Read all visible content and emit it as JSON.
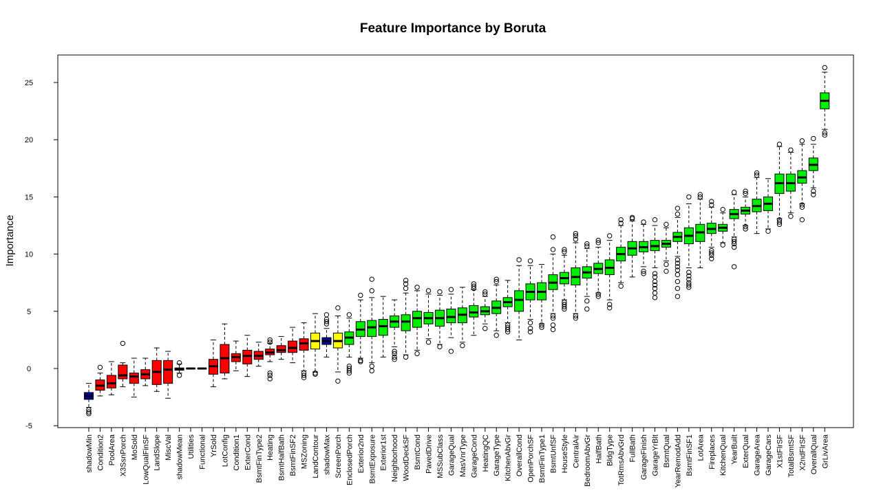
{
  "chart_data": {
    "type": "box",
    "title": "Feature Importance by Boruta",
    "ylabel": "Importance",
    "xlabel": "",
    "ylim": [
      -5.3,
      27.3
    ],
    "yticks": [
      -5,
      0,
      5,
      10,
      15,
      20,
      25
    ],
    "colors": {
      "rejected": "#ff0000",
      "tentative": "#ffff00",
      "confirmed": "#00ee00",
      "shadow": "#0000aa"
    },
    "grid": false,
    "legend": "none",
    "boxes": [
      {
        "name": "shadowMin",
        "status": "shadow",
        "min": -3.4,
        "q1": -2.7,
        "med": -2.4,
        "q3": -2.1,
        "max": -1.3,
        "outliers": [
          -3.6,
          -3.8,
          -3.95
        ]
      },
      {
        "name": "Condition2",
        "status": "rejected",
        "min": -2.4,
        "q1": -1.9,
        "med": -1.5,
        "q3": -1.0,
        "max": -0.4,
        "outliers": [
          0.1
        ]
      },
      {
        "name": "PoolArea",
        "status": "rejected",
        "min": -2.3,
        "q1": -1.7,
        "med": -1.3,
        "q3": -0.6,
        "max": 0.6,
        "outliers": []
      },
      {
        "name": "X3SsnPorch",
        "status": "rejected",
        "min": -1.6,
        "q1": -0.9,
        "med": -0.6,
        "q3": 0.3,
        "max": 0.5,
        "outliers": [
          2.2
        ]
      },
      {
        "name": "MoSold",
        "status": "rejected",
        "min": -2.5,
        "q1": -1.3,
        "med": -0.7,
        "q3": -0.4,
        "max": 0.9,
        "outliers": []
      },
      {
        "name": "LowQualFinSF",
        "status": "rejected",
        "min": -1.5,
        "q1": -0.9,
        "med": -0.5,
        "q3": -0.1,
        "max": 0.9,
        "outliers": []
      },
      {
        "name": "LandSlope",
        "status": "rejected",
        "min": -2.0,
        "q1": -1.4,
        "med": -0.3,
        "q3": 0.7,
        "max": 1.8,
        "outliers": []
      },
      {
        "name": "MiscVal",
        "status": "rejected",
        "min": -2.6,
        "q1": -1.3,
        "med": -0.1,
        "q3": 0.7,
        "max": 1.5,
        "outliers": []
      },
      {
        "name": "shadowMean",
        "status": "shadow",
        "min": -0.4,
        "q1": -0.15,
        "med": -0.05,
        "q3": 0.05,
        "max": 0.4,
        "outliers": [
          -0.6,
          0.5
        ]
      },
      {
        "name": "Utilities",
        "status": "rejected",
        "min": 0,
        "q1": 0,
        "med": 0,
        "q3": 0,
        "max": 0,
        "outliers": []
      },
      {
        "name": "Functional",
        "status": "rejected",
        "min": 0,
        "q1": 0,
        "med": 0,
        "q3": 0,
        "max": 0,
        "outliers": []
      },
      {
        "name": "YrSold",
        "status": "rejected",
        "min": -1.6,
        "q1": -0.5,
        "med": 0.2,
        "q3": 0.8,
        "max": 2.5,
        "outliers": []
      },
      {
        "name": "LotConfig",
        "status": "rejected",
        "min": -0.9,
        "q1": -0.4,
        "med": 0.9,
        "q3": 2.1,
        "max": 3.9,
        "outliers": []
      },
      {
        "name": "Condition1",
        "status": "rejected",
        "min": -0.2,
        "q1": 0.6,
        "med": 1.0,
        "q3": 1.3,
        "max": 2.4,
        "outliers": []
      },
      {
        "name": "ExterCond",
        "status": "rejected",
        "min": -0.7,
        "q1": 0.4,
        "med": 1.1,
        "q3": 1.6,
        "max": 2.9,
        "outliers": []
      },
      {
        "name": "BsmtFinType2",
        "status": "rejected",
        "min": 0.2,
        "q1": 0.8,
        "med": 1.1,
        "q3": 1.5,
        "max": 2.3,
        "outliers": []
      },
      {
        "name": "Heating",
        "status": "rejected",
        "min": 0.6,
        "q1": 1.2,
        "med": 1.4,
        "q3": 1.7,
        "max": 2.2,
        "outliers": [
          -0.4,
          -0.6,
          -0.9,
          2.3,
          2.5
        ]
      },
      {
        "name": "BsmtHalfBath",
        "status": "rejected",
        "min": 0.8,
        "q1": 1.4,
        "med": 1.6,
        "q3": 2.0,
        "max": 2.8,
        "outliers": []
      },
      {
        "name": "BsmtFinSF2",
        "status": "rejected",
        "min": 0.5,
        "q1": 1.4,
        "med": 1.8,
        "q3": 2.4,
        "max": 3.6,
        "outliers": []
      },
      {
        "name": "MSZoning",
        "status": "rejected",
        "min": -0.2,
        "q1": 1.6,
        "med": 2.2,
        "q3": 2.6,
        "max": 4.0,
        "outliers": [
          -0.4,
          -0.6,
          -0.8
        ]
      },
      {
        "name": "LandContour",
        "status": "tentative",
        "min": -0.3,
        "q1": 1.7,
        "med": 2.4,
        "q3": 3.1,
        "max": 4.8,
        "outliers": [
          -0.4,
          -0.5
        ]
      },
      {
        "name": "shadowMax",
        "status": "shadow",
        "min": 1.0,
        "q1": 2.1,
        "med": 2.4,
        "q3": 2.7,
        "max": 3.5,
        "outliers": [
          3.9,
          4.1,
          4.3,
          4.7
        ]
      },
      {
        "name": "ScreenPorch",
        "status": "tentative",
        "min": -0.3,
        "q1": 1.8,
        "med": 2.4,
        "q3": 3.1,
        "max": 4.6,
        "outliers": [
          -1.1,
          5.3
        ]
      },
      {
        "name": "EnclosedPorch",
        "status": "confirmed",
        "min": 1.0,
        "q1": 2.1,
        "med": 2.7,
        "q3": 3.2,
        "max": 4.4,
        "outliers": [
          -0.2,
          0.0,
          -0.4,
          0.2,
          4.7
        ]
      },
      {
        "name": "Exterior2nd",
        "status": "confirmed",
        "min": 0.9,
        "q1": 2.8,
        "med": 3.4,
        "q3": 4.1,
        "max": 6.0,
        "outliers": [
          0.6,
          0.7,
          6.4
        ]
      },
      {
        "name": "BsmtExposure",
        "status": "confirmed",
        "min": 0.5,
        "q1": 2.8,
        "med": 3.6,
        "q3": 4.2,
        "max": 6.2,
        "outliers": [
          -0.2,
          0.2,
          6.8,
          7.8
        ]
      },
      {
        "name": "Exterior1st",
        "status": "confirmed",
        "min": 1.0,
        "q1": 2.9,
        "med": 3.7,
        "q3": 4.3,
        "max": 6.3,
        "outliers": []
      },
      {
        "name": "Neighborhood",
        "status": "confirmed",
        "min": 1.9,
        "q1": 3.6,
        "med": 4.1,
        "q3": 4.6,
        "max": 6.0,
        "outliers": [
          0.8,
          1.0,
          1.3,
          1.5
        ]
      },
      {
        "name": "WoodDeckSF",
        "status": "confirmed",
        "min": 1.2,
        "q1": 3.3,
        "med": 4.1,
        "q3": 4.7,
        "max": 6.6,
        "outliers": [
          1.0,
          7.0,
          7.4,
          7.7
        ]
      },
      {
        "name": "BsmtCond",
        "status": "confirmed",
        "min": 1.6,
        "q1": 3.6,
        "med": 4.4,
        "q3": 5.0,
        "max": 6.8,
        "outliers": [
          1.3,
          7.1
        ]
      },
      {
        "name": "PavedDrive",
        "status": "confirmed",
        "min": 2.6,
        "q1": 3.9,
        "med": 4.4,
        "q3": 4.9,
        "max": 6.5,
        "outliers": [
          2.3,
          6.8
        ]
      },
      {
        "name": "MSSubClass",
        "status": "confirmed",
        "min": 2.1,
        "q1": 3.7,
        "med": 4.4,
        "q3": 5.1,
        "max": 6.4,
        "outliers": [
          1.9,
          6.7
        ]
      },
      {
        "name": "GarageQual",
        "status": "confirmed",
        "min": 2.7,
        "q1": 4.0,
        "med": 4.5,
        "q3": 5.2,
        "max": 6.5,
        "outliers": [
          1.5,
          6.9
        ]
      },
      {
        "name": "MasVnrType",
        "status": "confirmed",
        "min": 2.3,
        "q1": 4.0,
        "med": 4.7,
        "q3": 5.3,
        "max": 7.1,
        "outliers": [
          2.0
        ]
      },
      {
        "name": "GarageCond",
        "status": "confirmed",
        "min": 2.9,
        "q1": 4.5,
        "med": 4.9,
        "q3": 5.5,
        "max": 6.9,
        "outliers": [
          7.0,
          7.2,
          7.4
        ]
      },
      {
        "name": "HeatingQC",
        "status": "confirmed",
        "min": 3.9,
        "q1": 4.7,
        "med": 5.0,
        "q3": 5.4,
        "max": 6.3,
        "outliers": [
          3.5,
          6.5,
          6.7
        ]
      },
      {
        "name": "GarageType",
        "status": "confirmed",
        "min": 3.3,
        "q1": 4.8,
        "med": 5.3,
        "q3": 5.9,
        "max": 7.3,
        "outliers": [
          2.9,
          7.6,
          7.8
        ]
      },
      {
        "name": "KitchenAbvGr",
        "status": "confirmed",
        "min": 4.0,
        "q1": 5.4,
        "med": 5.8,
        "q3": 6.2,
        "max": 7.7,
        "outliers": [
          3.2,
          3.4,
          3.6,
          3.8
        ]
      },
      {
        "name": "OverallCond",
        "status": "confirmed",
        "min": 2.5,
        "q1": 5.0,
        "med": 6.0,
        "q3": 6.8,
        "max": 9.0,
        "outliers": [
          9.5
        ]
      },
      {
        "name": "OpenPorchSF",
        "status": "confirmed",
        "min": 4.3,
        "q1": 6.0,
        "med": 6.7,
        "q3": 7.4,
        "max": 9.0,
        "outliers": [
          3.2,
          3.5,
          4.0,
          9.4
        ]
      },
      {
        "name": "BsmtFinType1",
        "status": "confirmed",
        "min": 3.9,
        "q1": 6.0,
        "med": 6.7,
        "q3": 7.5,
        "max": 9.1,
        "outliers": [
          3.6,
          3.8
        ]
      },
      {
        "name": "BsmtUnfSF",
        "status": "confirmed",
        "min": 4.8,
        "q1": 6.9,
        "med": 7.5,
        "q3": 8.2,
        "max": 10.0,
        "outliers": [
          3.4,
          3.8,
          4.4,
          4.6,
          10.4,
          11.5
        ]
      },
      {
        "name": "HouseStyle",
        "status": "confirmed",
        "min": 6.0,
        "q1": 7.4,
        "med": 7.9,
        "q3": 8.4,
        "max": 9.9,
        "outliers": [
          5.2,
          5.4,
          5.6,
          5.8,
          10.2,
          10.4
        ]
      },
      {
        "name": "CentralAir",
        "status": "confirmed",
        "min": 4.8,
        "q1": 7.3,
        "med": 8.0,
        "q3": 8.8,
        "max": 11.0,
        "outliers": [
          4.4,
          4.6,
          11.3,
          11.6,
          11.8
        ]
      },
      {
        "name": "BedroomAbvGr",
        "status": "confirmed",
        "min": 6.3,
        "q1": 7.9,
        "med": 8.4,
        "q3": 8.9,
        "max": 10.5,
        "outliers": [
          5.2,
          5.9,
          10.7,
          10.9
        ]
      },
      {
        "name": "HalfBath",
        "status": "confirmed",
        "min": 6.6,
        "q1": 8.3,
        "med": 8.7,
        "q3": 9.2,
        "max": 10.6,
        "outliers": [
          6.3,
          6.5,
          11.0,
          11.2
        ]
      },
      {
        "name": "BldgType",
        "status": "confirmed",
        "min": 6.0,
        "q1": 8.2,
        "med": 8.8,
        "q3": 9.5,
        "max": 11.2,
        "outliers": [
          5.3,
          5.6,
          11.6
        ]
      },
      {
        "name": "TotRmsAbvGrd",
        "status": "confirmed",
        "min": 7.5,
        "q1": 9.4,
        "med": 10.0,
        "q3": 10.6,
        "max": 12.5,
        "outliers": [
          7.2,
          12.7,
          13.0
        ]
      },
      {
        "name": "FullBath",
        "status": "confirmed",
        "min": 8.0,
        "q1": 9.9,
        "med": 10.5,
        "q3": 11.1,
        "max": 12.9,
        "outliers": [
          13.1,
          13.2
        ]
      },
      {
        "name": "GarageFinish",
        "status": "confirmed",
        "min": 8.9,
        "q1": 10.2,
        "med": 10.6,
        "q3": 11.1,
        "max": 12.6,
        "outliers": [
          8.3,
          8.5,
          12.8
        ]
      },
      {
        "name": "GarageYrBlt",
        "status": "confirmed",
        "min": 8.8,
        "q1": 10.3,
        "med": 10.7,
        "q3": 11.2,
        "max": 12.5,
        "outliers": [
          6.2,
          6.6,
          7.0,
          7.3,
          7.6,
          8.0,
          8.3,
          13.0
        ]
      },
      {
        "name": "BsmtQual",
        "status": "confirmed",
        "min": 9.4,
        "q1": 10.6,
        "med": 10.9,
        "q3": 11.2,
        "max": 12.3,
        "outliers": [
          8.5,
          9.1,
          12.6
        ]
      },
      {
        "name": "YearRemodAdd",
        "status": "confirmed",
        "min": 9.8,
        "q1": 11.1,
        "med": 11.5,
        "q3": 11.9,
        "max": 13.2,
        "outliers": [
          6.3,
          7.0,
          7.6,
          8.2,
          8.6,
          8.9,
          9.2,
          9.5,
          13.5,
          14.0
        ]
      },
      {
        "name": "BsmtFinSF1",
        "status": "confirmed",
        "min": 8.8,
        "q1": 10.9,
        "med": 11.6,
        "q3": 12.3,
        "max": 14.4,
        "outliers": [
          7.1,
          7.3,
          7.5,
          7.8,
          8.1,
          8.4,
          15.0
        ]
      },
      {
        "name": "LotArea",
        "status": "confirmed",
        "min": 8.8,
        "q1": 11.1,
        "med": 11.9,
        "q3": 12.6,
        "max": 14.8,
        "outliers": [
          15.0,
          15.2
        ]
      },
      {
        "name": "Fireplaces",
        "status": "confirmed",
        "min": 10.6,
        "q1": 11.8,
        "med": 12.2,
        "q3": 12.7,
        "max": 14.1,
        "outliers": [
          9.6,
          9.9,
          10.1,
          10.3,
          14.3,
          14.6
        ]
      },
      {
        "name": "KitchenQual",
        "status": "confirmed",
        "min": 11.0,
        "q1": 12.0,
        "med": 12.3,
        "q3": 12.6,
        "max": 13.6,
        "outliers": [
          10.8,
          13.9
        ]
      },
      {
        "name": "YearBuilt",
        "status": "confirmed",
        "min": 11.5,
        "q1": 13.1,
        "med": 13.5,
        "q3": 13.9,
        "max": 15.2,
        "outliers": [
          8.9,
          10.6,
          10.9,
          11.1,
          11.3,
          15.4
        ]
      },
      {
        "name": "ExterQual",
        "status": "confirmed",
        "min": 12.5,
        "q1": 13.5,
        "med": 13.8,
        "q3": 14.1,
        "max": 15.0,
        "outliers": [
          12.2,
          12.4,
          15.3,
          15.5
        ]
      },
      {
        "name": "GarageArea",
        "status": "confirmed",
        "min": 11.8,
        "q1": 13.7,
        "med": 14.2,
        "q3": 14.8,
        "max": 16.7,
        "outliers": [
          16.9,
          17.1
        ]
      },
      {
        "name": "GarageCars",
        "status": "confirmed",
        "min": 12.2,
        "q1": 13.8,
        "med": 14.4,
        "q3": 15.0,
        "max": 16.6,
        "outliers": [
          12.0
        ]
      },
      {
        "name": "X1stFlrSF",
        "status": "confirmed",
        "min": 13.1,
        "q1": 15.3,
        "med": 16.2,
        "q3": 17.0,
        "max": 19.4,
        "outliers": [
          12.6,
          12.8,
          13.0,
          19.6
        ]
      },
      {
        "name": "TotalBsmtSF",
        "status": "confirmed",
        "min": 13.6,
        "q1": 15.5,
        "med": 16.2,
        "q3": 17.0,
        "max": 18.9,
        "outliers": [
          13.3,
          19.1
        ]
      },
      {
        "name": "X2ndFlrSF",
        "status": "confirmed",
        "min": 14.4,
        "q1": 16.2,
        "med": 16.7,
        "q3": 17.3,
        "max": 19.6,
        "outliers": [
          13.0,
          14.1,
          14.3,
          19.9
        ]
      },
      {
        "name": "OverallQual",
        "status": "confirmed",
        "min": 15.8,
        "q1": 17.3,
        "med": 17.8,
        "q3": 18.4,
        "max": 19.6,
        "outliers": [
          15.2,
          15.5,
          20.1
        ]
      },
      {
        "name": "GrLivArea",
        "status": "confirmed",
        "min": 20.9,
        "q1": 22.7,
        "med": 23.4,
        "q3": 24.1,
        "max": 25.9,
        "outliers": [
          20.4,
          20.6,
          26.3
        ]
      }
    ]
  }
}
